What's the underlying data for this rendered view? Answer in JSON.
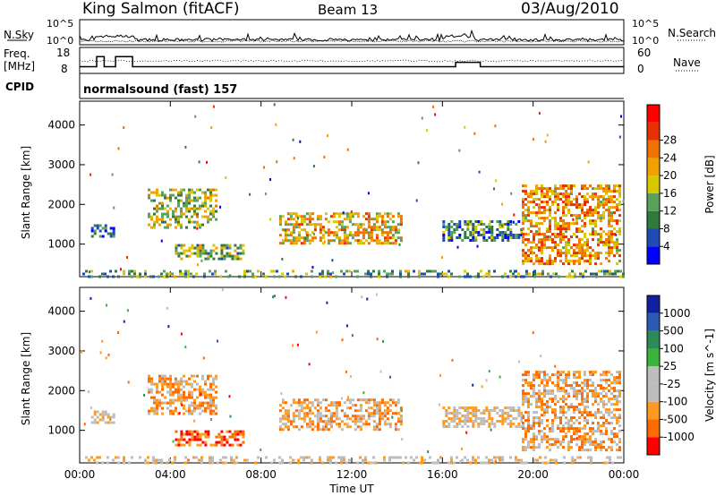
{
  "header": {
    "station": "King Salmon (fitACF)",
    "beam": "Beam 13",
    "date": "03/Aug/2010"
  },
  "side_labels": {
    "nsky": "N.Sky",
    "nsky_ticks": [
      "10^5",
      "10^0"
    ],
    "freq": "Freq.",
    "freq_unit": "[MHz]",
    "freq_ticks": [
      "18",
      "8"
    ],
    "cpid": "CPID",
    "nsearch": "N.Search",
    "nsearch_ticks": [
      "10^5",
      "10^0"
    ],
    "nave": "Nave",
    "nave_ticks": [
      "60",
      "0"
    ]
  },
  "mode_text": "normalsound (fast) 157",
  "colors": {
    "power": [
      "#0000ff",
      "#1e4bb4",
      "#2f7a3c",
      "#5aa05a",
      "#d8c800",
      "#f0a000",
      "#f07000",
      "#e83000",
      "#ff0000"
    ],
    "velocity": [
      "#ff0000",
      "#ff6a00",
      "#ff9a20",
      "#bdbdbd",
      "#bdbdbd",
      "#3cb43c",
      "#2f8a5a",
      "#2a5ab4",
      "#1020a0"
    ]
  },
  "chart_data": [
    {
      "type": "line",
      "title": "N.Sky / N.Search",
      "x_range": [
        "00:00",
        "24:00"
      ],
      "ylim_left": [
        1,
        100000
      ],
      "y_scale": "log",
      "yticks_left": [
        "10^5",
        "10^0"
      ],
      "yticks_right": [
        "10^5",
        "10^0"
      ],
      "series": [
        {
          "name": "N.Sky",
          "style": "solid"
        },
        {
          "name": "N.Search",
          "style": "dotted"
        }
      ]
    },
    {
      "type": "line",
      "x_range": [
        "00:00",
        "24:00"
      ],
      "ylabel": "Freq. [MHz]",
      "yticks_left": [
        "18",
        "8"
      ],
      "ylim_left": [
        8,
        18
      ],
      "yticks_right": [
        "60",
        "0"
      ],
      "ylim_right": [
        0,
        60
      ],
      "series": [
        {
          "name": "Freq.",
          "style": "solid",
          "x": [
            "00:00",
            "00:45",
            "00:45",
            "01:05",
            "01:05",
            "01:35",
            "01:35",
            "02:20",
            "02:20",
            "16:35",
            "16:35",
            "17:40",
            "17:40",
            "24:00"
          ],
          "y": [
            10.5,
            10.5,
            14.8,
            14.8,
            10.5,
            10.5,
            14.8,
            14.8,
            10.5,
            10.5,
            12.4,
            12.4,
            10.5,
            10.5
          ]
        },
        {
          "name": "Nave",
          "style": "dotted"
        }
      ]
    },
    {
      "type": "heatmap",
      "title": "Power",
      "xlabel": "",
      "ylabel": "Slant Range [km]",
      "xticks": [
        "00:00",
        "04:00",
        "08:00",
        "12:00",
        "16:00",
        "20:00",
        "00:00"
      ],
      "yticks": [
        "1000",
        "2000",
        "3000",
        "4000"
      ],
      "ylim": [
        180,
        4600
      ],
      "colorbar_label": "Power [dB]",
      "colorbar_ticks": [
        "4",
        "8",
        "12",
        "16",
        "20",
        "24",
        "28"
      ],
      "colorbar_range": [
        0,
        30
      ],
      "echo_regions": [
        {
          "t": [
            3.0,
            6.0
          ],
          "r": [
            1400,
            2400
          ],
          "value": 14
        },
        {
          "t": [
            0.5,
            1.5
          ],
          "r": [
            1200,
            1500
          ],
          "value": 6
        },
        {
          "t": [
            4.2,
            7.2
          ],
          "r": [
            650,
            1000
          ],
          "value": 12
        },
        {
          "t": [
            8.8,
            14.2
          ],
          "r": [
            1000,
            1800
          ],
          "value": 18
        },
        {
          "t": [
            16.0,
            19.5
          ],
          "r": [
            1100,
            1600
          ],
          "value": 8
        },
        {
          "t": [
            19.5,
            23.8
          ],
          "r": [
            500,
            2500
          ],
          "value": 20
        },
        {
          "t": [
            0.0,
            24.0
          ],
          "r": [
            180,
            350
          ],
          "value": 10
        }
      ]
    },
    {
      "type": "heatmap",
      "title": "Velocity",
      "xlabel": "Time UT",
      "ylabel": "Slant Range [km]",
      "xticks": [
        "00:00",
        "04:00",
        "08:00",
        "12:00",
        "16:00",
        "20:00",
        "00:00"
      ],
      "yticks": [
        "1000",
        "2000",
        "3000",
        "4000"
      ],
      "ylim": [
        180,
        4600
      ],
      "colorbar_label": "Velocity [m s^-1]",
      "colorbar_ticks": [
        "1000",
        "500",
        "100",
        "25",
        "-25",
        "-100",
        "-500",
        "-1000"
      ],
      "echo_regions": [
        {
          "t": [
            3.0,
            6.0
          ],
          "r": [
            1400,
            2400
          ],
          "value": -100
        },
        {
          "t": [
            0.5,
            1.5
          ],
          "r": [
            1200,
            1500
          ],
          "value": 0
        },
        {
          "t": [
            4.2,
            7.2
          ],
          "r": [
            650,
            1000
          ],
          "value": -300
        },
        {
          "t": [
            8.8,
            14.2
          ],
          "r": [
            1000,
            1800
          ],
          "value": -200
        },
        {
          "t": [
            16.0,
            19.5
          ],
          "r": [
            1100,
            1600
          ],
          "value": 0
        },
        {
          "t": [
            19.5,
            23.8
          ],
          "r": [
            500,
            2500
          ],
          "value": -200
        },
        {
          "t": [
            0.0,
            24.0
          ],
          "r": [
            180,
            350
          ],
          "value": 0
        }
      ]
    }
  ]
}
